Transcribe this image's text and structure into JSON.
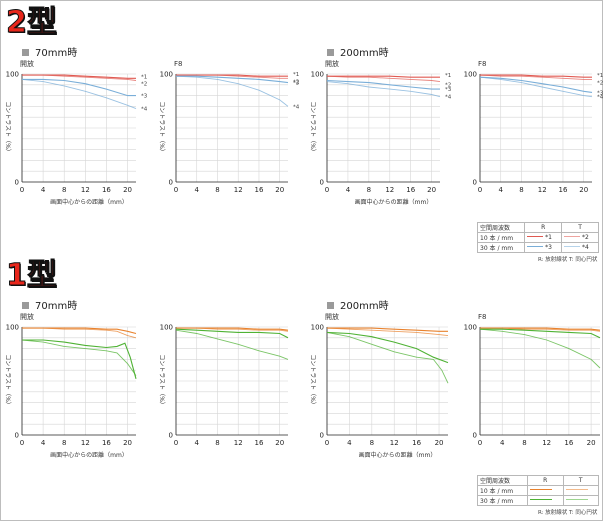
{
  "sections": {
    "type2": {
      "label": "2型",
      "chart_titles": [
        "70mm時",
        "200mm時"
      ],
      "legend": {
        "header": [
          "空間周波数",
          "R",
          "T"
        ],
        "rows": [
          {
            "label": "10 本 / mm",
            "r": "*1",
            "t": "*2"
          },
          {
            "label": "30 本 / mm",
            "r": "*3",
            "t": "*4"
          }
        ],
        "note": "R: 放射線状  T: 同心円状"
      }
    },
    "type1": {
      "label": "1型",
      "chart_titles": [
        "70mm時",
        "200mm時"
      ],
      "legend": {
        "header": [
          "空間周波数",
          "R",
          "T"
        ],
        "rows": [
          {
            "label": "10 本 / mm",
            "r": "",
            "t": ""
          },
          {
            "label": "30 本 / mm",
            "r": "",
            "t": ""
          }
        ],
        "note": "R: 放射線状  T: 同心円状"
      }
    }
  },
  "colors": {
    "type2_10": "#e05a52",
    "type2_30": "#7aaed8",
    "type1_10": "#e8822e",
    "type1_30": "#4fb234",
    "axis": "#222222",
    "grid": "#d6d6d6"
  },
  "chart_data": [
    {
      "type": "line",
      "group": "2型",
      "subtitle": "開放",
      "ylabel": "コントラスト（%）",
      "xlabel": "画面中心からの距離（mm）",
      "xlim": [
        0,
        21.6
      ],
      "ylim": [
        0,
        100
      ],
      "xticks": [
        0,
        4,
        8,
        12,
        16,
        20
      ],
      "yticks": [
        0,
        10,
        20,
        30,
        40,
        50,
        60,
        70,
        80,
        90,
        100
      ],
      "series": [
        {
          "name": "*1",
          "color_key": "type2_10",
          "x": [
            0,
            4,
            8,
            12,
            16,
            20,
            21.6
          ],
          "y": [
            99,
            99,
            99,
            98,
            97,
            96,
            96
          ]
        },
        {
          "name": "*2",
          "color_key": "type2_10",
          "x": [
            0,
            4,
            8,
            12,
            16,
            20,
            21.6
          ],
          "y": [
            99,
            99,
            98,
            97,
            96,
            95,
            94
          ]
        },
        {
          "name": "*3",
          "color_key": "type2_30",
          "x": [
            0,
            4,
            8,
            12,
            16,
            20,
            21.6
          ],
          "y": [
            95,
            95,
            94,
            91,
            86,
            80,
            80
          ]
        },
        {
          "name": "*4",
          "color_key": "type2_30",
          "x": [
            0,
            4,
            8,
            12,
            16,
            20,
            21.6
          ],
          "y": [
            95,
            93,
            89,
            84,
            78,
            71,
            68
          ]
        }
      ]
    },
    {
      "type": "line",
      "group": "2型",
      "subtitle": "F8",
      "ylabel": "コントラスト（%）",
      "xlabel": "",
      "xlim": [
        0,
        21.6
      ],
      "ylim": [
        0,
        100
      ],
      "xticks": [
        0,
        4,
        8,
        12,
        16,
        20
      ],
      "yticks": [
        0,
        10,
        20,
        30,
        40,
        50,
        60,
        70,
        80,
        90,
        100
      ],
      "series": [
        {
          "name": "*1",
          "color_key": "type2_10",
          "x": [
            0,
            4,
            8,
            12,
            16,
            20,
            21.6
          ],
          "y": [
            99,
            99,
            99,
            99,
            98,
            98,
            98
          ]
        },
        {
          "name": "*2",
          "color_key": "type2_10",
          "x": [
            0,
            4,
            8,
            12,
            16,
            20,
            21.6
          ],
          "y": [
            99,
            99,
            99,
            98,
            97,
            96,
            96
          ]
        },
        {
          "name": "*3",
          "color_key": "type2_30",
          "x": [
            0,
            4,
            8,
            12,
            16,
            20,
            21.6
          ],
          "y": [
            98,
            98,
            97,
            96,
            95,
            93,
            92
          ]
        },
        {
          "name": "*4",
          "color_key": "type2_30",
          "x": [
            0,
            4,
            8,
            12,
            16,
            20,
            21.6
          ],
          "y": [
            98,
            97,
            95,
            91,
            85,
            76,
            70
          ]
        }
      ]
    },
    {
      "type": "line",
      "group": "2型",
      "subtitle": "開放",
      "ylabel": "コントラスト（%）",
      "xlabel": "画面中心からの距離（mm）",
      "xlim": [
        0,
        21.6
      ],
      "ylim": [
        0,
        100
      ],
      "xticks": [
        0,
        4,
        8,
        12,
        16,
        20
      ],
      "yticks": [
        0,
        10,
        20,
        30,
        40,
        50,
        60,
        70,
        80,
        90,
        100
      ],
      "series": [
        {
          "name": "*1",
          "color_key": "type2_10",
          "x": [
            0,
            4,
            8,
            12,
            16,
            20,
            21.6
          ],
          "y": [
            98,
            98,
            98,
            98,
            97,
            97,
            97
          ]
        },
        {
          "name": "*2",
          "color_key": "type2_10",
          "x": [
            0,
            4,
            8,
            12,
            16,
            20,
            21.6
          ],
          "y": [
            98,
            97,
            97,
            96,
            95,
            94,
            93
          ]
        },
        {
          "name": "*3",
          "color_key": "type2_30",
          "x": [
            0,
            4,
            8,
            12,
            16,
            20,
            21.6
          ],
          "y": [
            94,
            93,
            92,
            90,
            88,
            86,
            86
          ]
        },
        {
          "name": "*4",
          "color_key": "type2_30",
          "x": [
            0,
            4,
            8,
            12,
            16,
            20,
            21.6
          ],
          "y": [
            93,
            91,
            88,
            86,
            84,
            81,
            79
          ]
        }
      ]
    },
    {
      "type": "line",
      "group": "2型",
      "subtitle": "F8",
      "ylabel": "",
      "xlabel": "",
      "xlim": [
        0,
        21.6
      ],
      "ylim": [
        0,
        100
      ],
      "xticks": [
        0,
        4,
        8,
        12,
        16,
        20
      ],
      "yticks": [
        0,
        10,
        20,
        30,
        40,
        50,
        60,
        70,
        80,
        90,
        100
      ],
      "series": [
        {
          "name": "*1",
          "color_key": "type2_10",
          "x": [
            0,
            4,
            8,
            12,
            16,
            20,
            21.6
          ],
          "y": [
            99,
            99,
            99,
            98,
            98,
            97,
            97
          ]
        },
        {
          "name": "*2",
          "color_key": "type2_10",
          "x": [
            0,
            4,
            8,
            12,
            16,
            20,
            21.6
          ],
          "y": [
            99,
            98,
            98,
            97,
            96,
            95,
            95
          ]
        },
        {
          "name": "*3",
          "color_key": "type2_30",
          "x": [
            0,
            4,
            8,
            12,
            16,
            20,
            21.6
          ],
          "y": [
            97,
            96,
            94,
            91,
            88,
            84,
            83
          ]
        },
        {
          "name": "*4",
          "color_key": "type2_30",
          "x": [
            0,
            4,
            8,
            12,
            16,
            20,
            21.6
          ],
          "y": [
            97,
            95,
            92,
            88,
            84,
            80,
            79
          ]
        }
      ]
    },
    {
      "type": "line",
      "group": "1型",
      "subtitle": "開放",
      "ylabel": "コントラスト（%）",
      "xlabel": "画面中心からの距離（mm）",
      "xlim": [
        0,
        21.6
      ],
      "ylim": [
        0,
        100
      ],
      "xticks": [
        0,
        4,
        8,
        12,
        16,
        20
      ],
      "yticks": [
        0,
        10,
        20,
        30,
        40,
        50,
        60,
        70,
        80,
        90,
        100
      ],
      "series": [
        {
          "name": "10R",
          "color_key": "type1_10",
          "x": [
            0,
            4,
            8,
            12,
            16,
            18,
            20,
            21.6
          ],
          "y": [
            99,
            99,
            99,
            99,
            98,
            98,
            96,
            94
          ]
        },
        {
          "name": "10T",
          "color_key": "type1_10",
          "x": [
            0,
            4,
            8,
            12,
            16,
            18,
            20,
            21.6
          ],
          "y": [
            99,
            99,
            98,
            98,
            97,
            96,
            92,
            90
          ]
        },
        {
          "name": "30R",
          "color_key": "type1_30",
          "x": [
            0,
            4,
            8,
            12,
            16,
            18,
            19.5,
            20.5,
            21.6
          ],
          "y": [
            88,
            88,
            86,
            83,
            81,
            82,
            85,
            72,
            52
          ]
        },
        {
          "name": "30T",
          "color_key": "type1_30",
          "x": [
            0,
            4,
            8,
            12,
            16,
            18,
            20,
            21.6
          ],
          "y": [
            88,
            86,
            82,
            80,
            78,
            76,
            66,
            55
          ]
        }
      ]
    },
    {
      "type": "line",
      "group": "1型",
      "subtitle": "",
      "ylabel": "コントラスト（%）",
      "xlabel": "",
      "xlim": [
        0,
        21.6
      ],
      "ylim": [
        0,
        100
      ],
      "xticks": [
        0,
        4,
        8,
        12,
        16,
        20
      ],
      "yticks": [
        0,
        10,
        20,
        30,
        40,
        50,
        60,
        70,
        80,
        90,
        100
      ],
      "series": [
        {
          "name": "10R",
          "color_key": "type1_10",
          "x": [
            0,
            4,
            8,
            12,
            16,
            20,
            21.6
          ],
          "y": [
            99,
            99,
            99,
            99,
            98,
            98,
            97
          ]
        },
        {
          "name": "10T",
          "color_key": "type1_10",
          "x": [
            0,
            4,
            8,
            12,
            16,
            20,
            21.6
          ],
          "y": [
            99,
            99,
            98,
            98,
            97,
            97,
            96
          ]
        },
        {
          "name": "30R",
          "color_key": "type1_30",
          "x": [
            0,
            4,
            8,
            12,
            16,
            20,
            21.6
          ],
          "y": [
            98,
            97,
            96,
            95,
            95,
            94,
            90
          ]
        },
        {
          "name": "30T",
          "color_key": "type1_30",
          "x": [
            0,
            4,
            8,
            12,
            16,
            20,
            21.6
          ],
          "y": [
            97,
            94,
            89,
            84,
            78,
            73,
            70
          ]
        }
      ]
    },
    {
      "type": "line",
      "group": "1型",
      "subtitle": "開放",
      "ylabel": "コントラスト（%）",
      "xlabel": "画面中心からの距離（mm）",
      "xlim": [
        0,
        21.6
      ],
      "ylim": [
        0,
        100
      ],
      "xticks": [
        0,
        4,
        8,
        12,
        16,
        20
      ],
      "yticks": [
        0,
        10,
        20,
        30,
        40,
        50,
        60,
        70,
        80,
        90,
        100
      ],
      "series": [
        {
          "name": "10R",
          "color_key": "type1_10",
          "x": [
            0,
            4,
            8,
            12,
            16,
            20,
            21.6
          ],
          "y": [
            99,
            99,
            99,
            98,
            97,
            96,
            96
          ]
        },
        {
          "name": "10T",
          "color_key": "type1_10",
          "x": [
            0,
            4,
            8,
            12,
            16,
            20,
            21.6
          ],
          "y": [
            99,
            98,
            97,
            96,
            95,
            93,
            92
          ]
        },
        {
          "name": "30R",
          "color_key": "type1_30",
          "x": [
            0,
            4,
            8,
            12,
            16,
            19,
            21.6
          ],
          "y": [
            95,
            94,
            91,
            86,
            80,
            72,
            67
          ]
        },
        {
          "name": "30T",
          "color_key": "type1_30",
          "x": [
            0,
            4,
            8,
            12,
            16,
            19,
            20.5,
            21.6
          ],
          "y": [
            95,
            91,
            84,
            77,
            72,
            70,
            60,
            48
          ]
        }
      ]
    },
    {
      "type": "line",
      "group": "1型",
      "subtitle": "F8",
      "ylabel": "",
      "xlabel": "",
      "xlim": [
        0,
        21.6
      ],
      "ylim": [
        0,
        100
      ],
      "xticks": [
        0,
        4,
        8,
        12,
        16,
        20
      ],
      "yticks": [
        0,
        10,
        20,
        30,
        40,
        50,
        60,
        70,
        80,
        90,
        100
      ],
      "series": [
        {
          "name": "10R",
          "color_key": "type1_10",
          "x": [
            0,
            4,
            8,
            12,
            16,
            20,
            21.6
          ],
          "y": [
            99,
            99,
            99,
            99,
            98,
            98,
            97
          ]
        },
        {
          "name": "10T",
          "color_key": "type1_10",
          "x": [
            0,
            4,
            8,
            12,
            16,
            20,
            21.6
          ],
          "y": [
            99,
            99,
            98,
            98,
            97,
            97,
            96
          ]
        },
        {
          "name": "30R",
          "color_key": "type1_30",
          "x": [
            0,
            4,
            8,
            12,
            16,
            20,
            21.6
          ],
          "y": [
            98,
            98,
            97,
            96,
            95,
            94,
            90
          ]
        },
        {
          "name": "30T",
          "color_key": "type1_30",
          "x": [
            0,
            4,
            8,
            12,
            16,
            20,
            21.6
          ],
          "y": [
            98,
            96,
            93,
            88,
            80,
            70,
            62
          ]
        }
      ]
    }
  ]
}
